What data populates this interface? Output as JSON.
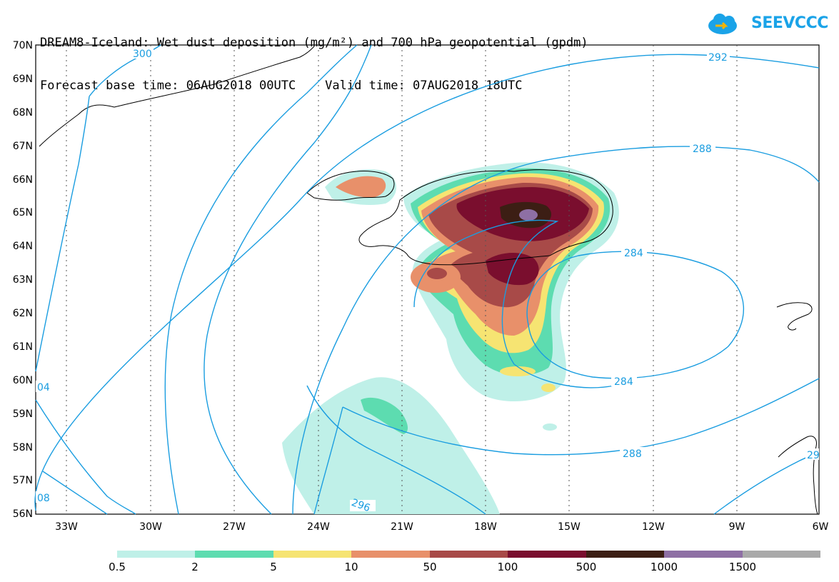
{
  "title_line1": "DREAM8-Iceland: Wet dust deposition (mg/m²) and 700 hPa geopotential (gpdm)",
  "title_line2": "Forecast base time: 06AUG2018 00UTC    Valid time: 07AUG2018 18UTC",
  "logo_text": "SEEVCCC",
  "lat_labels": [
    "70N",
    "69N",
    "68N",
    "67N",
    "66N",
    "65N",
    "64N",
    "63N",
    "62N",
    "61N",
    "60N",
    "59N",
    "58N",
    "57N",
    "56N"
  ],
  "lon_labels": [
    "33W",
    "30W",
    "27W",
    "24W",
    "21W",
    "18W",
    "15W",
    "12W",
    "9W",
    "6W"
  ],
  "contour_labels": {
    "c300": "300",
    "c292": "292",
    "c288a": "288",
    "c288b": "288",
    "c284a": "284",
    "c284b": "284",
    "c296": "296",
    "c304": "04",
    "c308": "08",
    "c29e": "29"
  },
  "legend": {
    "colors": [
      "#bff0e8",
      "#5ddcb0",
      "#f6e472",
      "#e8906a",
      "#a84a48",
      "#7a0e2e",
      "#3c1e14",
      "#8e6fa4",
      "#a9a9a9"
    ],
    "labels": [
      "0.5",
      "2",
      "5",
      "10",
      "50",
      "100",
      "500",
      "1000",
      "1500"
    ]
  }
}
